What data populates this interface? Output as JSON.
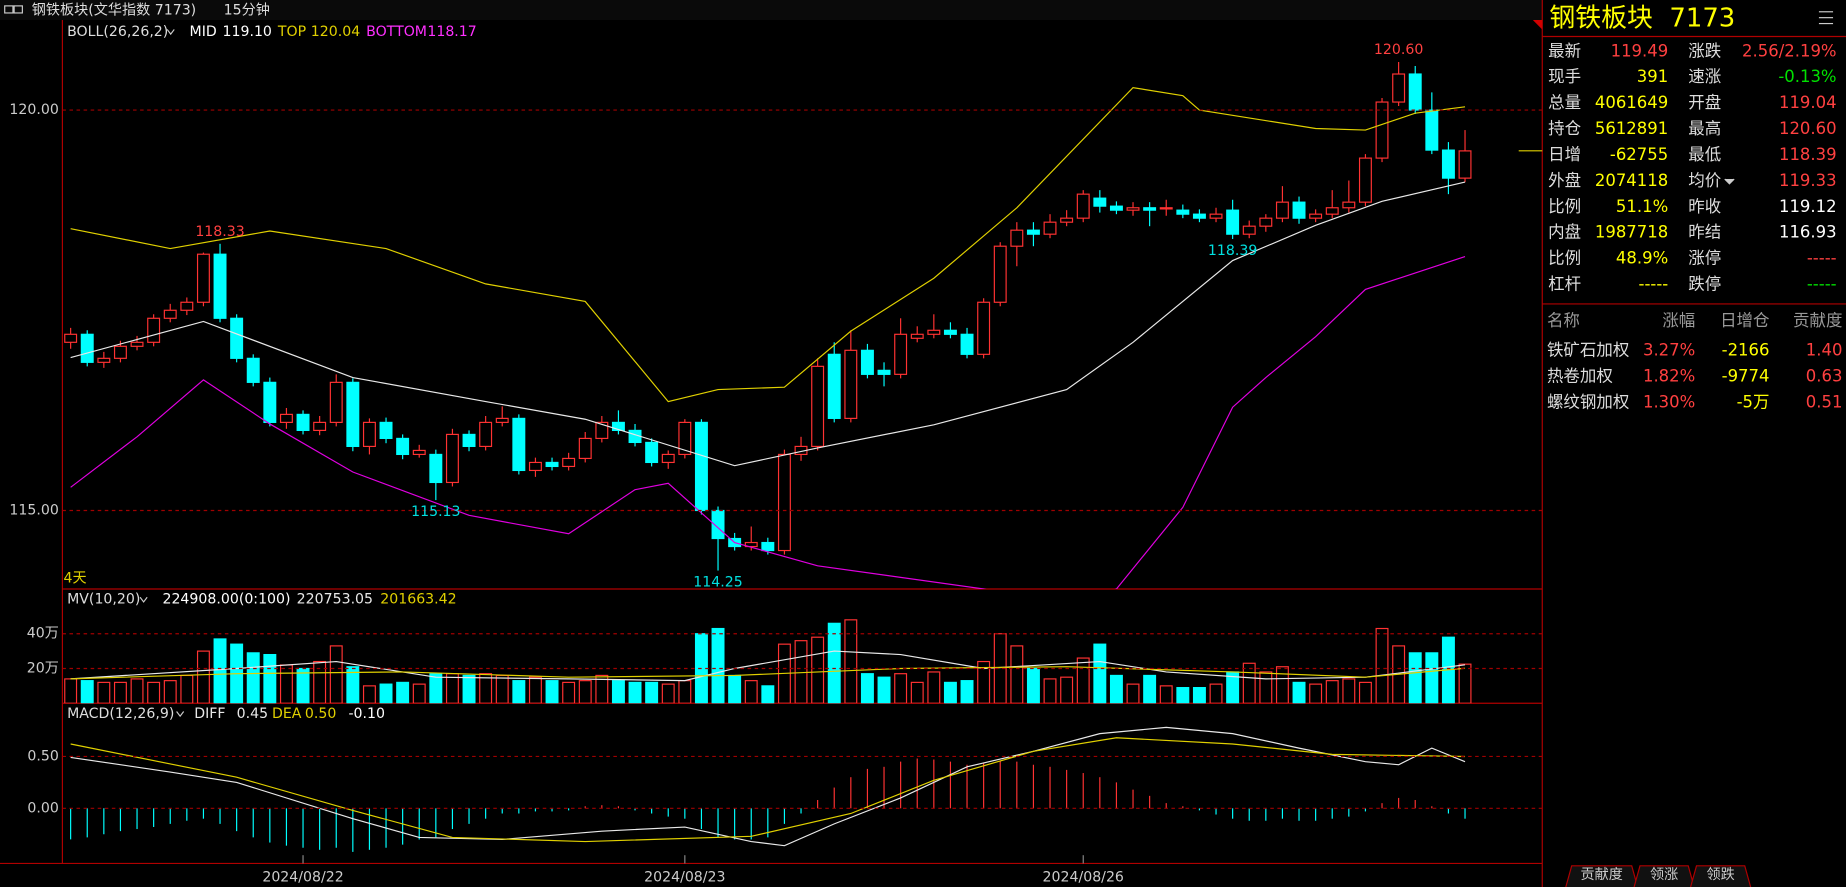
{
  "chart_data": {
    "type": "candlestick",
    "title": "钢铁板块(文华指数 7173)",
    "period": "15分钟",
    "up_color": "#ff3232",
    "down_color": "#00ffff",
    "open": [
      117.1,
      117.2,
      116.85,
      116.9,
      117.05,
      117.1,
      117.4,
      117.5,
      117.6,
      118.2,
      117.4,
      116.9,
      116.6,
      116.1,
      116.2,
      116.0,
      116.1,
      116.6,
      115.8,
      116.1,
      115.9,
      115.7,
      115.7,
      115.35,
      115.95,
      115.8,
      116.1,
      116.15,
      115.5,
      115.6,
      115.55,
      115.65,
      115.9,
      116.1,
      116.0,
      115.85,
      115.6,
      115.7,
      116.1,
      115.0,
      114.65,
      114.55,
      114.6,
      114.5,
      115.7,
      115.8,
      116.95,
      116.15,
      117.0,
      116.75,
      116.7,
      117.15,
      117.2,
      117.25,
      117.2,
      116.95,
      117.6,
      118.3,
      118.5,
      118.45,
      118.6,
      118.65,
      118.9,
      118.8,
      118.75,
      118.78,
      118.77,
      118.75,
      118.7,
      118.65,
      118.75,
      118.45,
      118.55,
      118.65,
      118.85,
      118.65,
      118.7,
      118.78,
      118.85,
      119.4,
      120.1,
      120.45,
      120.0,
      119.5,
      119.15
    ],
    "high": [
      117.28,
      117.25,
      116.98,
      117.12,
      117.18,
      117.45,
      117.58,
      117.66,
      118.22,
      118.33,
      117.45,
      116.95,
      116.66,
      116.28,
      116.25,
      116.18,
      116.7,
      116.65,
      116.15,
      116.16,
      115.95,
      115.82,
      115.76,
      116.02,
      116.0,
      116.18,
      116.3,
      116.2,
      115.66,
      115.66,
      115.72,
      115.98,
      116.18,
      116.25,
      116.08,
      115.9,
      115.75,
      116.14,
      116.14,
      115.05,
      114.72,
      114.8,
      114.66,
      115.76,
      115.92,
      116.9,
      117.1,
      117.25,
      117.08,
      116.85,
      117.4,
      117.3,
      117.45,
      117.35,
      117.28,
      117.65,
      118.35,
      118.6,
      118.6,
      118.7,
      118.75,
      119.0,
      119.0,
      118.86,
      118.85,
      118.85,
      118.88,
      118.82,
      118.76,
      118.78,
      118.88,
      118.62,
      118.7,
      119.05,
      118.92,
      118.76,
      119.0,
      119.12,
      119.45,
      120.15,
      120.6,
      120.55,
      120.22,
      119.6,
      119.75
    ],
    "low": [
      117.02,
      116.8,
      116.78,
      116.85,
      117.0,
      117.05,
      117.35,
      117.44,
      117.55,
      117.35,
      116.85,
      116.55,
      116.05,
      116.02,
      115.95,
      115.94,
      116.05,
      115.74,
      115.7,
      115.84,
      115.64,
      115.66,
      115.13,
      115.3,
      115.74,
      115.75,
      116.05,
      115.45,
      115.42,
      115.5,
      115.5,
      115.6,
      115.85,
      115.95,
      115.8,
      115.55,
      115.52,
      115.65,
      114.95,
      114.25,
      114.5,
      114.5,
      114.45,
      114.45,
      115.62,
      115.75,
      116.1,
      116.1,
      116.65,
      116.55,
      116.65,
      117.1,
      117.15,
      117.15,
      116.9,
      116.9,
      117.55,
      118.05,
      118.3,
      118.4,
      118.55,
      118.6,
      118.72,
      118.7,
      118.68,
      118.55,
      118.68,
      118.65,
      118.6,
      118.6,
      118.39,
      118.4,
      118.48,
      118.6,
      118.58,
      118.6,
      118.65,
      118.72,
      118.8,
      119.35,
      120.05,
      119.95,
      119.45,
      118.95,
      119.1
    ],
    "close": [
      117.2,
      116.85,
      116.9,
      117.05,
      117.1,
      117.4,
      117.5,
      117.6,
      118.2,
      117.4,
      116.9,
      116.6,
      116.1,
      116.2,
      116.0,
      116.1,
      116.6,
      115.8,
      116.1,
      115.9,
      115.7,
      115.75,
      115.35,
      115.95,
      115.8,
      116.1,
      116.15,
      115.5,
      115.6,
      115.55,
      115.65,
      115.9,
      116.1,
      116.0,
      115.85,
      115.6,
      115.7,
      116.1,
      115.0,
      114.65,
      114.55,
      114.6,
      114.5,
      115.7,
      115.8,
      116.8,
      116.15,
      117.0,
      116.7,
      116.7,
      117.2,
      117.2,
      117.25,
      117.2,
      116.95,
      117.6,
      118.3,
      118.5,
      118.45,
      118.6,
      118.65,
      118.95,
      118.8,
      118.75,
      118.78,
      118.75,
      118.78,
      118.7,
      118.65,
      118.7,
      118.45,
      118.55,
      118.65,
      118.85,
      118.65,
      118.7,
      118.78,
      118.85,
      119.4,
      120.1,
      120.45,
      120.0,
      119.5,
      119.15,
      119.49
    ],
    "x_labels": [
      {
        "value": 14,
        "label": "2024/08/22"
      },
      {
        "value": 37,
        "label": "2024/08/23"
      },
      {
        "value": 61,
        "label": "2024/08/26"
      }
    ],
    "ylim": [
      114.02,
      121.08
    ],
    "yticks": [
      {
        "value": 115,
        "label": "115.00"
      },
      {
        "value": 120,
        "label": "120.00"
      }
    ],
    "grid": true,
    "span_label": "4天",
    "annotations": [
      {
        "x": 9,
        "value": 118.33,
        "label": "118.33",
        "color": "#ff4040"
      },
      {
        "x": 22,
        "value": 115.13,
        "label": "115.13",
        "color": "#00e0e0"
      },
      {
        "x": 39,
        "value": 114.25,
        "label": "114.25",
        "color": "#00e0e0"
      },
      {
        "x": 70,
        "value": 118.39,
        "label": "118.39",
        "color": "#00e0e0"
      },
      {
        "x": 80,
        "value": 120.6,
        "label": "120.60",
        "color": "#ff4040"
      }
    ],
    "boll": {
      "name": "BOLL(26,26,2)",
      "series": [
        {
          "name": "MID",
          "value_label": "119.10",
          "color": "#e8e8e8",
          "x": [
            0,
            8,
            17,
            25,
            31,
            40,
            45,
            52,
            60,
            64,
            70,
            75,
            79,
            84
          ],
          "values": [
            116.91,
            117.36,
            116.66,
            116.36,
            116.14,
            115.56,
            115.78,
            116.07,
            116.51,
            117.1,
            118.12,
            118.56,
            118.86,
            119.1
          ]
        },
        {
          "name": "TOP",
          "value_label": "120.04",
          "color": "#e0d000",
          "x": [
            0,
            6,
            12,
            19,
            25,
            31,
            36,
            39,
            43,
            47,
            52,
            57,
            64,
            67,
            68,
            75,
            78,
            81,
            84
          ],
          "values": [
            118.52,
            118.27,
            118.49,
            118.27,
            117.83,
            117.61,
            116.36,
            116.51,
            116.54,
            117.24,
            117.9,
            118.78,
            120.28,
            120.18,
            120.0,
            119.77,
            119.75,
            119.96,
            120.04
          ]
        },
        {
          "name": "BOTTOM",
          "value_label": "118.17",
          "color": "#e000e0",
          "x": [
            0,
            4,
            8,
            12,
            17,
            24,
            30,
            34,
            36,
            40,
            45,
            55,
            60,
            63,
            67,
            70,
            72,
            75,
            78,
            84
          ],
          "values": [
            115.29,
            115.92,
            116.63,
            116.08,
            115.48,
            114.94,
            114.71,
            115.26,
            115.34,
            114.6,
            114.31,
            114.02,
            113.8,
            114.02,
            115.04,
            116.29,
            116.66,
            117.17,
            117.76,
            118.17
          ]
        }
      ]
    },
    "volume": {
      "name": "MV(10,20)",
      "value_label": "224908.00(0:100)",
      "values": [
        140000,
        130000,
        120000,
        120000,
        140000,
        120000,
        130000,
        160000,
        300000,
        370000,
        340000,
        290000,
        280000,
        220000,
        200000,
        240000,
        330000,
        210000,
        100000,
        110000,
        120000,
        110000,
        170000,
        170000,
        160000,
        170000,
        160000,
        130000,
        150000,
        130000,
        120000,
        130000,
        160000,
        130000,
        120000,
        120000,
        110000,
        130000,
        400000,
        430000,
        160000,
        130000,
        100000,
        340000,
        360000,
        380000,
        460000,
        480000,
        170000,
        150000,
        170000,
        120000,
        180000,
        120000,
        130000,
        240000,
        400000,
        330000,
        200000,
        140000,
        150000,
        260000,
        340000,
        160000,
        110000,
        160000,
        100000,
        90000,
        90000,
        110000,
        180000,
        230000,
        180000,
        210000,
        120000,
        110000,
        130000,
        140000,
        120000,
        430000,
        330000,
        290000,
        290000,
        380000,
        224908
      ],
      "ylim": [
        0,
        644000
      ],
      "yticks": [
        {
          "value": 200000,
          "label": "20万"
        },
        {
          "value": 400000,
          "label": "40万"
        }
      ],
      "series": [
        {
          "value_label": "220753.05",
          "color": "#e8e8e8",
          "x": [
            0,
            10,
            16,
            22,
            30,
            37,
            40,
            46,
            50,
            55,
            62,
            66,
            72,
            78,
            84
          ],
          "values": [
            140000,
            200000,
            240000,
            150000,
            140000,
            130000,
            200000,
            300000,
            280000,
            200000,
            240000,
            180000,
            140000,
            150000,
            220753.05
          ]
        },
        {
          "value_label": "201663.42",
          "color": "#e0d000",
          "x": [
            0,
            10,
            20,
            30,
            40,
            50,
            60,
            70,
            78,
            84
          ],
          "values": [
            140000,
            170000,
            180000,
            150000,
            160000,
            200000,
            210000,
            180000,
            150000,
            201663.42
          ]
        }
      ]
    },
    "macd": {
      "name": "MACD(12,26,9)",
      "value_label": "-0.10",
      "values": [
        -0.3,
        -0.28,
        -0.25,
        -0.22,
        -0.2,
        -0.18,
        -0.15,
        -0.12,
        -0.1,
        -0.15,
        -0.22,
        -0.28,
        -0.33,
        -0.36,
        -0.38,
        -0.4,
        -0.38,
        -0.42,
        -0.4,
        -0.38,
        -0.35,
        -0.3,
        -0.28,
        -0.2,
        -0.15,
        -0.1,
        -0.05,
        -0.05,
        -0.03,
        -0.03,
        -0.02,
        0.02,
        0.03,
        0.02,
        -0.02,
        -0.05,
        -0.08,
        -0.1,
        -0.2,
        -0.28,
        -0.3,
        -0.3,
        -0.28,
        -0.15,
        -0.05,
        0.08,
        0.2,
        0.3,
        0.38,
        0.4,
        0.45,
        0.48,
        0.47,
        0.45,
        0.42,
        0.44,
        0.46,
        0.45,
        0.42,
        0.4,
        0.37,
        0.34,
        0.3,
        0.25,
        0.18,
        0.12,
        0.05,
        0.02,
        -0.02,
        -0.06,
        -0.1,
        -0.12,
        -0.12,
        -0.1,
        -0.12,
        -0.12,
        -0.1,
        -0.08,
        -0.03,
        0.05,
        0.1,
        0.08,
        0.02,
        -0.05,
        -0.1
      ],
      "ylim": [
        -0.52,
        0.99
      ],
      "yticks": [
        {
          "value": 0,
          "label": "0.00"
        },
        {
          "value": 0.5,
          "label": "0.50"
        }
      ],
      "series": [
        {
          "name": "DIFF",
          "value_label": "0.45",
          "color": "#e8e8e8",
          "x": [
            0,
            6,
            10,
            17,
            21,
            26,
            32,
            37,
            41,
            43,
            46,
            50,
            54,
            58,
            62,
            66,
            70,
            74,
            78,
            80,
            82,
            84
          ],
          "values": [
            0.49,
            0.35,
            0.25,
            -0.1,
            -0.28,
            -0.3,
            -0.22,
            -0.18,
            -0.32,
            -0.36,
            -0.15,
            0.1,
            0.4,
            0.55,
            0.72,
            0.78,
            0.72,
            0.58,
            0.45,
            0.42,
            0.58,
            0.45
          ]
        },
        {
          "name": "DEA",
          "value_label": "0.50",
          "color": "#e0d000",
          "x": [
            0,
            10,
            17,
            23,
            31,
            41,
            47,
            52,
            58,
            63,
            70,
            76,
            84
          ],
          "values": [
            0.62,
            0.3,
            -0.02,
            -0.28,
            -0.32,
            -0.27,
            -0.05,
            0.27,
            0.55,
            0.68,
            0.62,
            0.52,
            0.5
          ]
        }
      ]
    }
  },
  "quote": {
    "name": "钢铁板块",
    "code": "7173",
    "rows": [
      [
        {
          "label": "最新",
          "value": "119.49",
          "color": "#ff4040"
        },
        {
          "label": "涨跌",
          "value": "2.56/2.19%",
          "color": "#ff4040"
        }
      ],
      [
        {
          "label": "现手",
          "value": "391",
          "color": "#ffff00"
        },
        {
          "label": "速涨",
          "value": "-0.13%",
          "color": "#00e000"
        }
      ],
      [
        {
          "label": "总量",
          "value": "4061649",
          "color": "#ffff00"
        },
        {
          "label": "开盘",
          "value": "119.04",
          "color": "#ff4040"
        }
      ],
      [
        {
          "label": "持仓",
          "value": "5612891",
          "color": "#ffff00"
        },
        {
          "label": "最高",
          "value": "120.60",
          "color": "#ff4040"
        }
      ],
      [
        {
          "label": "日增",
          "value": "-62755",
          "color": "#ffff00"
        },
        {
          "label": "最低",
          "value": "118.39",
          "color": "#ff4040"
        }
      ],
      [
        {
          "label": "外盘",
          "value": "2074118",
          "color": "#ffff00"
        },
        {
          "label": "均价",
          "value": "119.33",
          "color": "#ff4040"
        }
      ],
      [
        {
          "label": "比例",
          "value": "51.1%",
          "color": "#ffff00"
        },
        {
          "label": "昨收",
          "value": "119.12",
          "color": "#ffffff"
        }
      ],
      [
        {
          "label": "内盘",
          "value": "1987718",
          "color": "#ffff00"
        },
        {
          "label": "昨结",
          "value": "116.93",
          "color": "#ffffff"
        }
      ],
      [
        {
          "label": "比例",
          "value": "48.9%",
          "color": "#ffff00"
        },
        {
          "label": "涨停",
          "value": "-----",
          "color": "#ff4040"
        }
      ],
      [
        {
          "label": "杠杆",
          "value": "-----",
          "color": "#ffff00"
        },
        {
          "label": "跌停",
          "value": "-----",
          "color": "#00e000"
        }
      ]
    ],
    "components": {
      "header": [
        "名称",
        "涨幅",
        "日增仓",
        "贡献度"
      ],
      "rows": [
        [
          "铁矿石加权",
          "3.27%",
          "-2166",
          "1.40"
        ],
        [
          "热卷加权",
          "1.82%",
          "-9774",
          "0.63"
        ],
        [
          "螺纹钢加权",
          "1.30%",
          "-5万",
          "0.51"
        ]
      ]
    },
    "tabs": [
      "贡献度",
      "领涨",
      "领跌"
    ]
  }
}
